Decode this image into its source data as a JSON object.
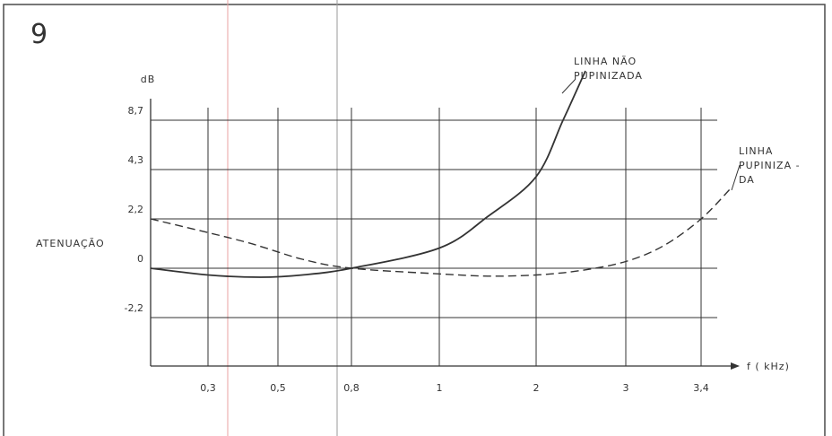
{
  "figure_number": "9",
  "chart_data": {
    "type": "line",
    "ylabel": "ATENUAÇÃO",
    "yunit": "dB",
    "xlabel": "f ( kHz)",
    "x_tick_labels": [
      "0,3",
      "0,5",
      "0,8",
      "1",
      "2",
      "3",
      "3,4"
    ],
    "y_tick_labels": [
      "8,7",
      "4,3",
      "2,2",
      "0",
      "-2,2"
    ],
    "y_levels": [
      -4.4,
      -2.2,
      0,
      2.2,
      4.3,
      8.7
    ],
    "series": [
      {
        "name": "LINHA NÃO PUPINIZADA",
        "label_lines": [
          "LINHA NÃO",
          "PUPINIZADA"
        ],
        "style": "solid",
        "points": [
          [
            0.2,
            0
          ],
          [
            0.3,
            -0.3
          ],
          [
            0.45,
            -0.4
          ],
          [
            0.6,
            -0.3
          ],
          [
            0.8,
            0
          ],
          [
            1.0,
            0.9
          ],
          [
            1.5,
            2.3
          ],
          [
            2.0,
            4.0
          ],
          [
            2.3,
            8.7
          ],
          [
            2.55,
            13.0
          ]
        ]
      },
      {
        "name": "LINHA PUPINIZADA",
        "label_lines": [
          "LINHA",
          "PUPINIZA -",
          "DA"
        ],
        "style": "dashed",
        "points": [
          [
            0.2,
            2.2
          ],
          [
            0.4,
            1.2
          ],
          [
            0.6,
            0.4
          ],
          [
            0.8,
            0
          ],
          [
            1.0,
            -0.25
          ],
          [
            1.5,
            -0.35
          ],
          [
            2.0,
            -0.3
          ],
          [
            2.5,
            -0.1
          ],
          [
            3.0,
            0.3
          ],
          [
            3.2,
            1.0
          ],
          [
            3.4,
            2.2
          ],
          [
            3.6,
            3.5
          ]
        ]
      }
    ]
  }
}
